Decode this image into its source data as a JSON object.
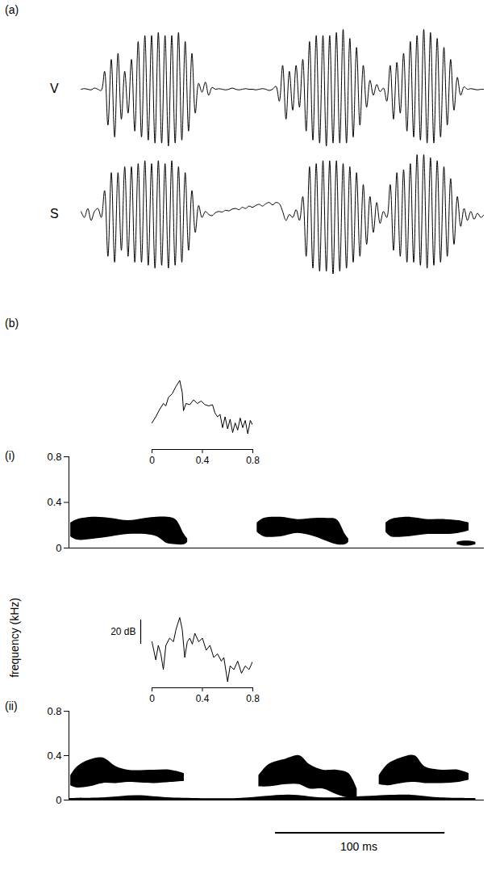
{
  "chart_data": [
    {
      "type": "line",
      "panel": "(a)",
      "x": [
        0,
        2,
        4,
        6,
        8,
        10,
        12,
        14,
        16,
        18,
        20,
        22,
        24,
        26,
        28,
        30,
        32,
        34,
        36,
        38,
        40,
        42,
        44,
        46,
        48,
        50,
        52,
        54,
        56,
        58,
        60,
        62,
        64,
        66,
        68,
        70,
        72,
        74,
        76,
        78,
        80,
        82,
        84,
        86,
        88,
        90,
        92,
        94,
        96,
        98,
        100,
        102,
        104,
        106,
        108,
        110,
        112,
        114,
        116,
        118,
        120,
        122,
        124,
        126,
        128,
        130,
        132,
        134,
        136,
        138,
        140,
        142,
        144,
        146,
        148,
        150,
        152,
        154,
        156,
        158,
        160,
        162,
        164,
        166,
        168,
        170,
        172,
        174,
        176,
        178,
        180,
        182,
        184,
        186,
        188,
        190,
        192,
        194,
        196,
        198,
        200,
        202,
        204,
        206,
        208,
        210,
        212,
        214,
        216,
        218,
        220,
        222,
        224,
        226,
        228,
        230,
        232,
        234,
        236,
        238,
        240
      ],
      "xlim": [
        0,
        240
      ],
      "ylim": [
        -1,
        1
      ],
      "tick_labels": false,
      "series": [
        {
          "name": "V",
          "color": "#000000",
          "values": [
            0,
            0.01,
            0,
            -0.01,
            0.02,
            0,
            -0.02,
            0.3,
            -0.6,
            0.5,
            -0.8,
            0.6,
            -0.5,
            0.3,
            -0.4,
            0.5,
            -0.7,
            0.8,
            -0.8,
            0.9,
            -0.85,
            0.9,
            -0.9,
            0.95,
            -0.9,
            0.9,
            -0.95,
            0.9,
            -0.9,
            0.95,
            -0.85,
            0.8,
            -0.7,
            0.6,
            -0.4,
            0.1,
            -0.05,
            0.12,
            -0.1,
            0.03,
            0,
            0.01,
            0,
            -0.01,
            0,
            0.02,
            0,
            -0.01,
            0,
            0.01,
            0,
            0,
            -0.01,
            0,
            0.01,
            0,
            -0.02,
            0,
            0.05,
            -0.2,
            0.4,
            -0.5,
            0.3,
            -0.35,
            0.4,
            -0.3,
            0.5,
            -0.7,
            0.8,
            -0.85,
            0.9,
            -0.9,
            0.9,
            -0.95,
            0.9,
            -0.9,
            0.95,
            -0.9,
            1.0,
            -0.9,
            0.85,
            -0.8,
            0.7,
            -0.6,
            0.4,
            -0.3,
            0.15,
            -0.1,
            0.08,
            -0.04,
            0.02,
            -0.2,
            0.4,
            -0.5,
            0.45,
            -0.4,
            0.6,
            -0.7,
            0.8,
            -0.8,
            0.9,
            -0.85,
            1.0,
            -0.9,
            0.95,
            -0.9,
            0.85,
            -0.8,
            0.7,
            -0.6,
            0.5,
            -0.35,
            0.2,
            -0.1,
            0.04,
            0,
            0.01,
            0,
            -0.01,
            0,
            0
          ]
        },
        {
          "name": "S",
          "color": "#000000",
          "values": [
            0.05,
            -0.05,
            0.1,
            -0.1,
            0.05,
            0.1,
            -0.05,
            0.4,
            -0.7,
            0.7,
            -0.8,
            0.7,
            -0.6,
            0.8,
            -0.7,
            0.8,
            -0.8,
            0.85,
            -0.8,
            0.9,
            -0.85,
            0.85,
            -0.9,
            0.9,
            -0.85,
            0.85,
            -0.9,
            0.9,
            -0.85,
            0.8,
            -0.8,
            0.7,
            -0.6,
            0.4,
            -0.3,
            0.15,
            -0.05,
            0.05,
            0,
            -0.02,
            0.03,
            0.05,
            0.04,
            0.07,
            0.06,
            0.09,
            0.1,
            0.08,
            0.12,
            0.1,
            0.14,
            0.12,
            0.15,
            0.17,
            0.14,
            0.18,
            0.2,
            0.16,
            0.2,
            0.18,
            0.05,
            -0.1,
            0,
            -0.05,
            0.08,
            -0.1,
            0.3,
            -0.7,
            0.8,
            -0.9,
            0.85,
            -0.95,
            0.9,
            -0.95,
            0.9,
            -1.0,
            0.9,
            -0.95,
            0.85,
            -0.9,
            0.8,
            -0.8,
            0.7,
            -0.7,
            0.5,
            -0.5,
            0.3,
            -0.3,
            0.2,
            -0.15,
            0.05,
            -0.05,
            0.5,
            -0.6,
            0.7,
            -0.7,
            0.75,
            -0.8,
            0.85,
            -0.8,
            1.0,
            -0.85,
            1.0,
            -0.9,
            0.95,
            -0.85,
            0.9,
            -0.8,
            0.8,
            -0.7,
            0.6,
            -0.5,
            0.3,
            -0.2,
            0.1,
            -0.1,
            0.05,
            -0.08,
            0.02,
            -0.05,
            0
          ]
        }
      ]
    },
    {
      "type": "area",
      "panel": "(b)",
      "subpanel": "(i)",
      "xlim": [
        0,
        245
      ],
      "ylim": [
        0,
        0.8
      ],
      "yticks": [
        0,
        0.4,
        0.8
      ],
      "tick_labels": "y",
      "color": "#000000",
      "blobs": [
        {
          "t": [
            1,
            5,
            15,
            25,
            35,
            45,
            52,
            58,
            63,
            68,
            70
          ],
          "f_low": [
            0.1,
            0.07,
            0.08,
            0.1,
            0.12,
            0.12,
            0.1,
            0.04,
            0.03,
            0.03,
            0.05
          ],
          "f_high": [
            0.22,
            0.25,
            0.27,
            0.26,
            0.24,
            0.26,
            0.27,
            0.27,
            0.25,
            0.12,
            0.08
          ]
        },
        {
          "t": [
            111,
            115,
            125,
            135,
            145,
            152,
            158,
            163,
            165
          ],
          "f_low": [
            0.14,
            0.1,
            0.1,
            0.13,
            0.1,
            0.06,
            0.03,
            0.03,
            0.05
          ],
          "f_high": [
            0.22,
            0.26,
            0.27,
            0.25,
            0.26,
            0.26,
            0.25,
            0.12,
            0.08
          ]
        },
        {
          "t": [
            187,
            190,
            200,
            212,
            222,
            230,
            236
          ],
          "f_low": [
            0.14,
            0.1,
            0.1,
            0.12,
            0.12,
            0.13,
            0.15
          ],
          "f_high": [
            0.22,
            0.25,
            0.27,
            0.25,
            0.25,
            0.24,
            0.22
          ]
        },
        {
          "t": [
            229,
            232,
            237,
            240
          ],
          "f_low": [
            0.03,
            0.02,
            0.02,
            0.03
          ],
          "f_high": [
            0.05,
            0.06,
            0.06,
            0.05
          ]
        }
      ],
      "inset": {
        "type": "line",
        "x": [
          0.0,
          0.03,
          0.06,
          0.09,
          0.11,
          0.13,
          0.16,
          0.19,
          0.22,
          0.24,
          0.25,
          0.27,
          0.3,
          0.33,
          0.36,
          0.39,
          0.42,
          0.45,
          0.48,
          0.5,
          0.52,
          0.54,
          0.56,
          0.58,
          0.6,
          0.62,
          0.64,
          0.66,
          0.68,
          0.7,
          0.72,
          0.74,
          0.76,
          0.78,
          0.8
        ],
        "values": [
          -38,
          -33,
          -27,
          -22,
          -24,
          -17,
          -14,
          -8,
          -3,
          -13,
          -28,
          -22,
          -23,
          -19,
          -22,
          -20,
          -23,
          -24,
          -23,
          -30,
          -33,
          -31,
          -42,
          -33,
          -43,
          -35,
          -46,
          -38,
          -44,
          -34,
          -42,
          -36,
          -47,
          -36,
          -40
        ],
        "xlim": [
          0,
          0.8
        ],
        "xticks": [
          0,
          0.4,
          0.8
        ],
        "ylim": [
          -60,
          0
        ],
        "tick_labels": "x",
        "color": "#000000"
      }
    },
    {
      "type": "area",
      "subpanel": "(ii)",
      "y_label": "frequency (kHz)",
      "xlim": [
        0,
        245
      ],
      "ylim": [
        0,
        0.8
      ],
      "yticks": [
        0,
        0.4,
        0.8
      ],
      "tick_labels": "y",
      "color": "#000000",
      "blobs": [
        {
          "t": [
            1,
            5,
            12,
            20,
            28,
            35,
            50,
            60,
            68
          ],
          "f_low": [
            0.13,
            0.11,
            0.12,
            0.15,
            0.15,
            0.16,
            0.15,
            0.16,
            0.17
          ],
          "f_high": [
            0.22,
            0.3,
            0.36,
            0.38,
            0.3,
            0.27,
            0.27,
            0.27,
            0.24
          ]
        },
        {
          "t": [
            112,
            118,
            128,
            136,
            142,
            150,
            158,
            165,
            170
          ],
          "f_low": [
            0.12,
            0.12,
            0.14,
            0.14,
            0.1,
            0.1,
            0.05,
            0.02,
            0.02
          ],
          "f_high": [
            0.22,
            0.32,
            0.37,
            0.4,
            0.32,
            0.27,
            0.27,
            0.24,
            0.1
          ]
        },
        {
          "t": [
            183,
            188,
            196,
            204,
            210,
            220,
            230,
            236
          ],
          "f_low": [
            0.14,
            0.13,
            0.15,
            0.16,
            0.15,
            0.15,
            0.16,
            0.18
          ],
          "f_high": [
            0.22,
            0.32,
            0.38,
            0.4,
            0.3,
            0.27,
            0.27,
            0.24
          ]
        },
        {
          "t": [
            0,
            20,
            40,
            60,
            100,
            130,
            150,
            200,
            220,
            240
          ],
          "f_low": [
            0,
            0,
            0,
            0,
            0,
            0,
            0,
            0,
            0,
            0
          ],
          "f_high": [
            0.015,
            0.02,
            0.04,
            0.02,
            0.015,
            0.045,
            0.02,
            0.045,
            0.02,
            0.015
          ]
        }
      ],
      "inset": {
        "type": "line",
        "x": [
          0.0,
          0.03,
          0.05,
          0.07,
          0.09,
          0.11,
          0.14,
          0.17,
          0.19,
          0.22,
          0.24,
          0.26,
          0.28,
          0.3,
          0.32,
          0.34,
          0.37,
          0.4,
          0.43,
          0.46,
          0.49,
          0.52,
          0.55,
          0.57,
          0.6,
          0.62,
          0.65,
          0.68,
          0.71,
          0.74,
          0.77,
          0.8
        ],
        "values": [
          -22,
          -37,
          -25,
          -32,
          -45,
          -25,
          -19,
          -22,
          -12,
          -2,
          -12,
          -35,
          -22,
          -19,
          -24,
          -15,
          -22,
          -19,
          -29,
          -25,
          -35,
          -32,
          -38,
          -35,
          -55,
          -42,
          -45,
          -38,
          -48,
          -42,
          -45,
          -38
        ],
        "xlim": [
          0,
          0.8
        ],
        "xticks": [
          0,
          0.4,
          0.8
        ],
        "ylim": [
          -60,
          0
        ],
        "tick_labels": "x",
        "color": "#000000",
        "scale_bar": {
          "value": 20,
          "label": "20 dB"
        }
      },
      "scale_bar": {
        "value": 100,
        "label": "100 ms"
      }
    }
  ]
}
